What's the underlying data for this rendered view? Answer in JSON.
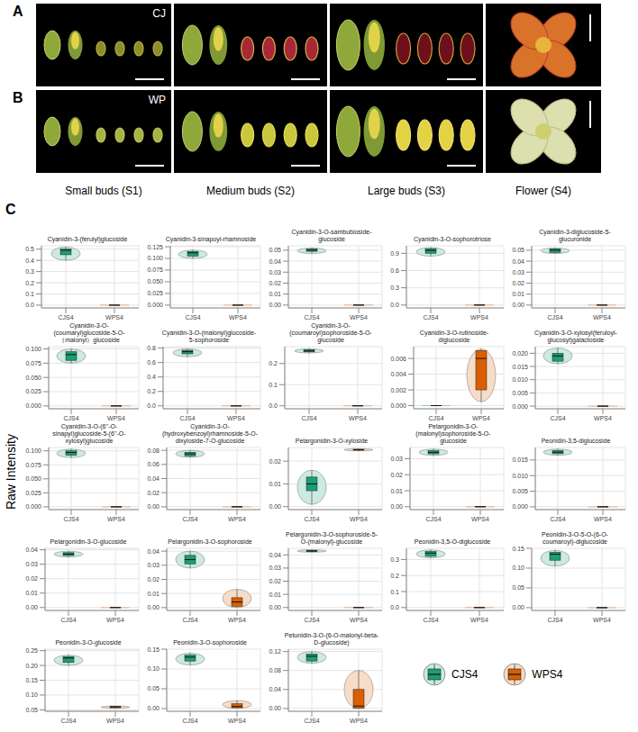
{
  "panel_letters": [
    "A",
    "B",
    "C"
  ],
  "photo_labels": [
    "CJ",
    "WP"
  ],
  "stages": [
    "Small buds (S1)",
    "Medium buds (S2)",
    "Large buds (S3)",
    "Flower (S4)"
  ],
  "y_label": "Raw Intensity",
  "legend_items": [
    {
      "name": "CJS4",
      "color": "#1b9e77"
    },
    {
      "name": "WPS4",
      "color": "#d95f02"
    }
  ],
  "chart_data": [
    {
      "type": "box",
      "title": "Cyanidin-3-(ferulyl)glucoside",
      "categories": [
        "CJS4",
        "WPS4"
      ],
      "colors": [
        "#1b9e77",
        "#d95f02"
      ],
      "min": [
        0.4,
        0
      ],
      "q1": [
        0.45,
        0
      ],
      "median": [
        0.49,
        0
      ],
      "q3": [
        0.5,
        0
      ],
      "max": [
        0.52,
        0
      ],
      "ylim": [
        -0.025,
        0.53
      ],
      "yticks": [
        {
          "value": 0,
          "label": "0.0"
        },
        0.1,
        0.2,
        0.3,
        0.4,
        0.5
      ],
      "grid": true
    },
    {
      "type": "box",
      "title": "Cyanidin-3-sinapoyl-rhamnoside",
      "categories": [
        "CJS4",
        "WPS4"
      ],
      "colors": [
        "#1b9e77",
        "#d95f02"
      ],
      "min": [
        0.1,
        0
      ],
      "q1": [
        0.105,
        0
      ],
      "median": [
        0.112,
        0
      ],
      "q3": [
        0.115,
        0
      ],
      "max": [
        0.118,
        0
      ],
      "ylim": [
        -0.006,
        0.127
      ],
      "yticks": [
        {
          "value": 0,
          "label": "0.000"
        },
        0.025,
        {
          "value": 0.05,
          "label": "0.050"
        },
        0.075,
        {
          "value": 0.1,
          "label": "0.100"
        },
        0.125
      ],
      "grid": true
    },
    {
      "type": "box",
      "title": "Cyanidin-3-O-sambubioside-glucoside",
      "categories": [
        "CJS4",
        "WPS4"
      ],
      "colors": [
        "#1b9e77",
        "#d95f02"
      ],
      "min": [
        0.047,
        0
      ],
      "q1": [
        0.049,
        0
      ],
      "median": [
        0.05,
        0
      ],
      "q3": [
        0.051,
        0
      ],
      "max": [
        0.052,
        0
      ],
      "ylim": [
        -0.0026,
        0.054
      ],
      "yticks": [
        {
          "value": 0,
          "label": "0.00"
        },
        0.01,
        0.02,
        0.03,
        0.04,
        0.05
      ],
      "grid": true
    },
    {
      "type": "box",
      "title": "Cyanidin-3-O-sophorotriose",
      "categories": [
        "CJS4",
        "WPS4"
      ],
      "colors": [
        "#1b9e77",
        "#d95f02"
      ],
      "min": [
        0.85,
        0
      ],
      "q1": [
        0.9,
        0
      ],
      "median": [
        0.95,
        0
      ],
      "q3": [
        0.98,
        0
      ],
      "max": [
        1.0,
        0
      ],
      "ylim": [
        -0.05,
        1.03
      ],
      "yticks": [
        {
          "value": 0,
          "label": "0.0"
        },
        0.3,
        0.6,
        0.9
      ],
      "grid": true
    },
    {
      "type": "box",
      "title": "Cyanidin-3-diglucoside-5-glucuronide",
      "categories": [
        "CJS4",
        "WPS4"
      ],
      "colors": [
        "#1b9e77",
        "#d95f02"
      ],
      "min": [
        0.047,
        0
      ],
      "q1": [
        0.048,
        0
      ],
      "median": [
        0.05,
        0
      ],
      "q3": [
        0.051,
        0
      ],
      "max": [
        0.052,
        0
      ],
      "ylim": [
        -0.0026,
        0.054
      ],
      "yticks": [
        {
          "value": 0,
          "label": "0.00"
        },
        0.01,
        0.02,
        0.03,
        0.04,
        0.05
      ],
      "grid": true
    },
    {
      "type": "box",
      "title": "Cyanidin-3-O-(coumaryl)glucoside-5-O-（malonyl）glucoside",
      "categories": [
        "CJS4",
        "WPS4"
      ],
      "colors": [
        "#1b9e77",
        "#d95f02"
      ],
      "min": [
        0.075,
        0
      ],
      "q1": [
        0.08,
        0
      ],
      "median": [
        0.09,
        0
      ],
      "q3": [
        0.095,
        0
      ],
      "max": [
        0.1,
        0
      ],
      "ylim": [
        -0.005,
        0.104
      ],
      "yticks": [
        {
          "value": 0,
          "label": "0.000"
        },
        0.025,
        {
          "value": 0.05,
          "label": "0.050"
        },
        0.075,
        {
          "value": 0.1,
          "label": "0.100"
        }
      ],
      "grid": true
    },
    {
      "type": "box",
      "title": "Cyanidin-3-O-(malonyl)glucoside-5-sophoroside",
      "categories": [
        "CJS4",
        "WPS4"
      ],
      "colors": [
        "#1b9e77",
        "#d95f02"
      ],
      "min": [
        0.68,
        0
      ],
      "q1": [
        0.72,
        0
      ],
      "median": [
        0.75,
        0
      ],
      "q3": [
        0.77,
        0
      ],
      "max": [
        0.79,
        0
      ],
      "ylim": [
        -0.04,
        0.82
      ],
      "yticks": [
        {
          "value": 0,
          "label": "0.0"
        },
        0.2,
        0.4,
        0.6,
        0.8
      ],
      "grid": true
    },
    {
      "type": "box",
      "title": "Cyanidin-3-O-(coumaroyl)sophoroside-5-O-glucoside",
      "categories": [
        "CJS4",
        "WPS4"
      ],
      "colors": [
        "#1b9e77",
        "#d95f02"
      ],
      "min": [
        0.25,
        0
      ],
      "q1": [
        0.255,
        0
      ],
      "median": [
        0.26,
        0
      ],
      "q3": [
        0.265,
        0
      ],
      "max": [
        0.27,
        0
      ],
      "ylim": [
        -0.014,
        0.28
      ],
      "yticks": [
        {
          "value": 0,
          "label": "0.0"
        },
        0.1,
        0.2
      ],
      "grid": true
    },
    {
      "type": "box",
      "title": "Cyanidin-3-O-rutinoside-diglucoside",
      "categories": [
        "CJS4",
        "WPS4"
      ],
      "colors": [
        "#1b9e77",
        "#d95f02"
      ],
      "min": [
        0,
        0.0005
      ],
      "q1": [
        0,
        0.002
      ],
      "median": [
        0,
        0.006
      ],
      "q3": [
        0,
        0.007
      ],
      "max": [
        0,
        0.0072
      ],
      "ylim": [
        -0.0004,
        0.0075
      ],
      "yticks": [
        {
          "value": 0,
          "label": "0.000"
        },
        0.002,
        0.004,
        0.006
      ],
      "grid": true
    },
    {
      "type": "box",
      "title": "Cyanidin-3-O-xylosyl(feruloyl-glucosyl)galactoside",
      "categories": [
        "CJS4",
        "WPS4"
      ],
      "colors": [
        "#1b9e77",
        "#d95f02"
      ],
      "min": [
        0.016,
        0
      ],
      "q1": [
        0.017,
        0
      ],
      "median": [
        0.019,
        0
      ],
      "q3": [
        0.02,
        0
      ],
      "max": [
        0.022,
        0
      ],
      "ylim": [
        -0.001,
        0.0225
      ],
      "yticks": [
        {
          "value": 0,
          "label": "0.000"
        },
        0.005,
        {
          "value": 0.01,
          "label": "0.010"
        },
        0.015,
        {
          "value": 0.02,
          "label": "0.020"
        }
      ],
      "grid": true
    },
    {
      "type": "box",
      "title": "Cyanidin-3-O-(6''-O-sinapyl)glucoside-5-(6''-O-xylosyl)glucoside",
      "categories": [
        "CJS4",
        "WPS4"
      ],
      "colors": [
        "#1b9e77",
        "#d95f02"
      ],
      "min": [
        0.088,
        0
      ],
      "q1": [
        0.092,
        0
      ],
      "median": [
        0.097,
        0
      ],
      "q3": [
        0.1,
        0
      ],
      "max": [
        0.103,
        0
      ],
      "ylim": [
        -0.005,
        0.106
      ],
      "yticks": [
        {
          "value": 0,
          "label": "0.000"
        },
        0.025,
        {
          "value": 0.05,
          "label": "0.050"
        },
        0.075,
        {
          "value": 0.1,
          "label": "0.100"
        }
      ],
      "grid": true
    },
    {
      "type": "box",
      "title": "Cyanidin-3-O-(hydroxybenzoyl)rhamnoside-5-O-dixyloside-7-O-glucoside",
      "categories": [
        "CJS4",
        "WPS4"
      ],
      "colors": [
        "#1b9e77",
        "#d95f02"
      ],
      "min": [
        0.07,
        0
      ],
      "q1": [
        0.072,
        0
      ],
      "median": [
        0.075,
        0
      ],
      "q3": [
        0.077,
        0
      ],
      "max": [
        0.08,
        0
      ],
      "ylim": [
        -0.004,
        0.084
      ],
      "yticks": [
        {
          "value": 0,
          "label": "0.00"
        },
        0.02,
        0.04,
        0.06,
        0.08
      ],
      "grid": true
    },
    {
      "type": "box",
      "title": "Pelargonidin-3-O-xyloside",
      "categories": [
        "CJS4",
        "WPS4"
      ],
      "colors": [
        "#1b9e77",
        "#d95f02"
      ],
      "min": [
        0.001,
        0.0245
      ],
      "q1": [
        0.007,
        0.0248
      ],
      "median": [
        0.01,
        0.025
      ],
      "q3": [
        0.013,
        0.0252
      ],
      "max": [
        0.016,
        0.0255
      ],
      "ylim": [
        -0.0013,
        0.026
      ],
      "yticks": [
        {
          "value": 0,
          "label": "0.00"
        },
        0.01,
        0.02
      ],
      "grid": true
    },
    {
      "type": "box",
      "title": "Pelargonidin-3-O-(malonyl)sophoroside-5-O-glucoside",
      "categories": [
        "CJS4",
        "WPS4"
      ],
      "colors": [
        "#1b9e77",
        "#d95f02"
      ],
      "min": [
        0.032,
        0
      ],
      "q1": [
        0.033,
        0
      ],
      "median": [
        0.034,
        0
      ],
      "q3": [
        0.035,
        0
      ],
      "max": [
        0.036,
        0
      ],
      "ylim": [
        -0.0018,
        0.037
      ],
      "yticks": [
        {
          "value": 0,
          "label": "0.00"
        },
        0.01,
        0.02,
        0.03
      ],
      "grid": true
    },
    {
      "type": "box",
      "title": "Peonidin-3,5-diglucoside",
      "categories": [
        "CJS4",
        "WPS4"
      ],
      "colors": [
        "#1b9e77",
        "#d95f02"
      ],
      "min": [
        0.0165,
        0
      ],
      "q1": [
        0.017,
        0
      ],
      "median": [
        0.0175,
        0
      ],
      "q3": [
        0.018,
        0
      ],
      "max": [
        0.0185,
        0
      ],
      "ylim": [
        -0.0009,
        0.019
      ],
      "yticks": [
        {
          "value": 0,
          "label": "0.000"
        },
        0.005,
        {
          "value": 0.01,
          "label": "0.010"
        },
        0.015
      ],
      "grid": true
    },
    {
      "type": "box",
      "title": "Pelargonidin-3-O-glucoside",
      "categories": [
        "CJS4",
        "WPS4"
      ],
      "colors": [
        "#1b9e77",
        "#d95f02"
      ],
      "min": [
        0.035,
        0
      ],
      "q1": [
        0.036,
        0
      ],
      "median": [
        0.037,
        0
      ],
      "q3": [
        0.038,
        0
      ],
      "max": [
        0.039,
        0
      ],
      "ylim": [
        -0.002,
        0.041
      ],
      "yticks": [
        {
          "value": 0,
          "label": "0.00"
        },
        0.01,
        0.02,
        0.03,
        0.04
      ],
      "grid": true
    },
    {
      "type": "box",
      "title": "Pelargonidin-3-O-sophoroside",
      "categories": [
        "CJS4",
        "WPS4"
      ],
      "colors": [
        "#1b9e77",
        "#d95f02"
      ],
      "min": [
        0.028,
        0
      ],
      "q1": [
        0.031,
        0.001
      ],
      "median": [
        0.034,
        0.004
      ],
      "q3": [
        0.037,
        0.007
      ],
      "max": [
        0.04,
        0.013
      ],
      "ylim": [
        -0.002,
        0.042
      ],
      "yticks": [
        {
          "value": 0,
          "label": "0.00"
        },
        0.01,
        0.02,
        0.03,
        0.04
      ],
      "grid": true
    },
    {
      "type": "box",
      "title": "Pelargonidin-3-O-sophoroside-5-O-(malonyl)-glucoside",
      "categories": [
        "CJS4",
        "WPS4"
      ],
      "colors": [
        "#1b9e77",
        "#d95f02"
      ],
      "min": [
        0.042,
        0
      ],
      "q1": [
        0.0425,
        0
      ],
      "median": [
        0.043,
        0
      ],
      "q3": [
        0.0435,
        0
      ],
      "max": [
        0.044,
        0
      ],
      "ylim": [
        -0.0022,
        0.045
      ],
      "yticks": [
        {
          "value": 0,
          "label": "0.00"
        },
        0.01,
        0.02,
        0.03,
        0.04
      ],
      "grid": true
    },
    {
      "type": "box",
      "title": "Peonidin-3,5-O-diglucoside",
      "categories": [
        "CJS4",
        "WPS4"
      ],
      "colors": [
        "#1b9e77",
        "#d95f02"
      ],
      "min": [
        0.31,
        0
      ],
      "q1": [
        0.32,
        0
      ],
      "median": [
        0.34,
        0
      ],
      "q3": [
        0.35,
        0
      ],
      "max": [
        0.36,
        0
      ],
      "ylim": [
        -0.018,
        0.37
      ],
      "yticks": [
        {
          "value": 0,
          "label": "0.0"
        },
        0.1,
        0.2,
        0.3
      ],
      "grid": true
    },
    {
      "type": "box",
      "title": "Peonidin-3-O-5-O-(6-O-coumaroyl)-diglucoside",
      "categories": [
        "CJS4",
        "WPS4"
      ],
      "colors": [
        "#1b9e77",
        "#d95f02"
      ],
      "min": [
        0.105,
        0
      ],
      "q1": [
        0.12,
        0
      ],
      "median": [
        0.135,
        0
      ],
      "q3": [
        0.14,
        0
      ],
      "max": [
        0.145,
        0
      ],
      "ylim": [
        -0.007,
        0.15
      ],
      "yticks": [
        {
          "value": 0,
          "label": "0.00"
        },
        0.05,
        {
          "value": 0.1,
          "label": "0.10"
        },
        0.15
      ],
      "grid": true
    },
    {
      "type": "box",
      "title": "Peonidin-3-O-glucoside",
      "categories": [
        "CJS4",
        "WPS4"
      ],
      "colors": [
        "#1b9e77",
        "#d95f02"
      ],
      "min": [
        0.2,
        0.055
      ],
      "q1": [
        0.21,
        0.057
      ],
      "median": [
        0.225,
        0.06
      ],
      "q3": [
        0.23,
        0.062
      ],
      "max": [
        0.235,
        0.063
      ],
      "ylim": [
        0.045,
        0.255
      ],
      "yticks": [
        0.05,
        {
          "value": 0.1,
          "label": "0.10"
        },
        0.15,
        {
          "value": 0.2,
          "label": "0.20"
        },
        0.25
      ],
      "grid": true
    },
    {
      "type": "box",
      "title": "Peonidin-3-O-sophoroside",
      "categories": [
        "CJS4",
        "WPS4"
      ],
      "colors": [
        "#1b9e77",
        "#d95f02"
      ],
      "min": [
        0.11,
        0
      ],
      "q1": [
        0.12,
        0.002
      ],
      "median": [
        0.13,
        0.005
      ],
      "q3": [
        0.135,
        0.012
      ],
      "max": [
        0.14,
        0.02
      ],
      "ylim": [
        -0.007,
        0.15
      ],
      "yticks": [
        {
          "value": 0,
          "label": "0.00"
        },
        0.05,
        {
          "value": 0.1,
          "label": "0.10"
        },
        0.15
      ],
      "grid": true
    },
    {
      "type": "box",
      "title": "Petunidin-3-O-(6-O-malonyl-beta-D-glucoside)",
      "categories": [
        "CJS4",
        "WPS4"
      ],
      "colors": [
        "#1b9e77",
        "#d95f02"
      ],
      "min": [
        0.095,
        0
      ],
      "q1": [
        0.1,
        0
      ],
      "median": [
        0.11,
        0.005
      ],
      "q3": [
        0.115,
        0.04
      ],
      "max": [
        0.12,
        0.08
      ],
      "ylim": [
        -0.006,
        0.125
      ],
      "yticks": [
        {
          "value": 0,
          "label": "0.00"
        },
        0.04,
        0.08,
        0.12
      ],
      "grid": true
    }
  ]
}
